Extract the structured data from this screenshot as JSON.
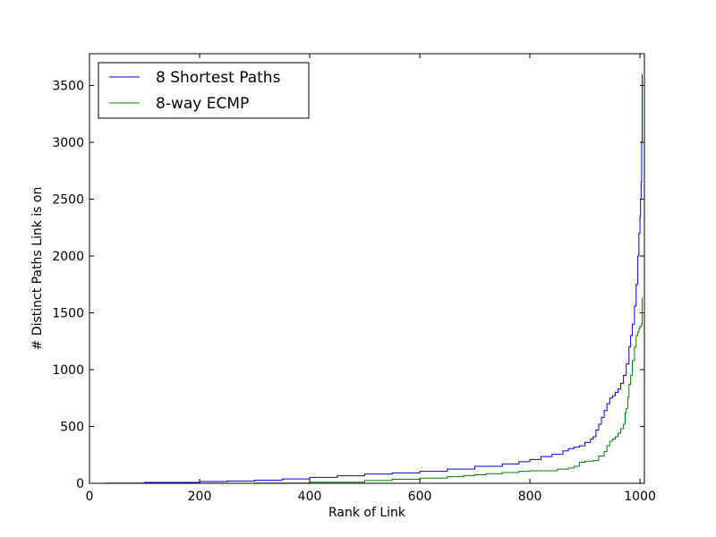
{
  "chart_data": {
    "type": "line",
    "title": "",
    "xlabel": "Rank of Link",
    "ylabel": "# Distinct Paths Link is on",
    "xlim": [
      0,
      1008
    ],
    "ylim": [
      0,
      3780
    ],
    "xticks": [
      0,
      200,
      400,
      600,
      800,
      1000
    ],
    "yticks": [
      0,
      500,
      1000,
      1500,
      2000,
      2500,
      3000,
      3500
    ],
    "grid": false,
    "legend_position": "top-left",
    "series": [
      {
        "name": "8 Shortest Paths",
        "color": "#0000ff",
        "points": [
          [
            30,
            2
          ],
          [
            100,
            8
          ],
          [
            200,
            16
          ],
          [
            250,
            20
          ],
          [
            300,
            28
          ],
          [
            350,
            38
          ],
          [
            400,
            52
          ],
          [
            450,
            66
          ],
          [
            500,
            82
          ],
          [
            550,
            92
          ],
          [
            600,
            105
          ],
          [
            650,
            125
          ],
          [
            700,
            150
          ],
          [
            750,
            170
          ],
          [
            780,
            190
          ],
          [
            800,
            210
          ],
          [
            820,
            235
          ],
          [
            840,
            255
          ],
          [
            860,
            285
          ],
          [
            870,
            305
          ],
          [
            880,
            318
          ],
          [
            890,
            330
          ],
          [
            900,
            360
          ],
          [
            910,
            390
          ],
          [
            915,
            410
          ],
          [
            920,
            470
          ],
          [
            925,
            520
          ],
          [
            930,
            580
          ],
          [
            935,
            640
          ],
          [
            940,
            700
          ],
          [
            945,
            750
          ],
          [
            950,
            770
          ],
          [
            955,
            800
          ],
          [
            960,
            830
          ],
          [
            965,
            880
          ],
          [
            970,
            950
          ],
          [
            975,
            1050
          ],
          [
            980,
            1200
          ],
          [
            983,
            1300
          ],
          [
            986,
            1400
          ],
          [
            990,
            1560
          ],
          [
            993,
            1750
          ],
          [
            996,
            2000
          ],
          [
            998,
            2200
          ],
          [
            1000,
            2350
          ],
          [
            1001,
            2500
          ],
          [
            1002,
            2650
          ],
          [
            1003,
            3000
          ],
          [
            1004,
            3600
          ]
        ]
      },
      {
        "name": "8-way ECMP",
        "color": "#008000",
        "points": [
          [
            300,
            2
          ],
          [
            400,
            10
          ],
          [
            500,
            25
          ],
          [
            550,
            35
          ],
          [
            600,
            45
          ],
          [
            650,
            58
          ],
          [
            680,
            68
          ],
          [
            700,
            75
          ],
          [
            720,
            85
          ],
          [
            750,
            95
          ],
          [
            780,
            105
          ],
          [
            800,
            110
          ],
          [
            850,
            125
          ],
          [
            870,
            135
          ],
          [
            880,
            150
          ],
          [
            890,
            185
          ],
          [
            900,
            195
          ],
          [
            915,
            200
          ],
          [
            925,
            240
          ],
          [
            935,
            280
          ],
          [
            940,
            330
          ],
          [
            945,
            370
          ],
          [
            950,
            390
          ],
          [
            955,
            410
          ],
          [
            960,
            440
          ],
          [
            965,
            480
          ],
          [
            970,
            520
          ],
          [
            973,
            620
          ],
          [
            975,
            660
          ],
          [
            978,
            760
          ],
          [
            980,
            870
          ],
          [
            983,
            950
          ],
          [
            986,
            1080
          ],
          [
            990,
            1200
          ],
          [
            993,
            1300
          ],
          [
            996,
            1330
          ],
          [
            998,
            1360
          ],
          [
            1000,
            1380
          ],
          [
            1003,
            1400
          ],
          [
            1004,
            1630
          ]
        ]
      }
    ]
  }
}
